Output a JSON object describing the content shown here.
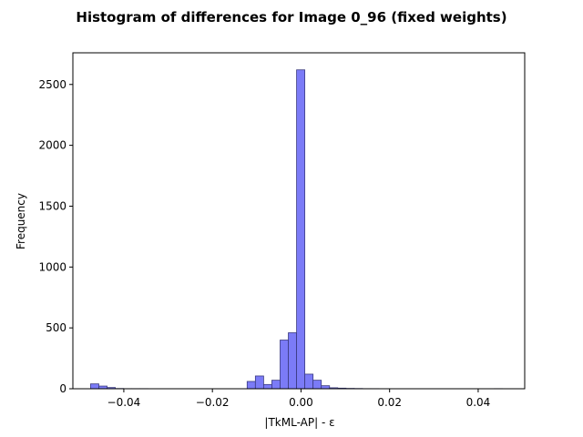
{
  "chart_data": {
    "type": "bar",
    "title": "Histogram of differences for Image 0_96 (fixed weights)",
    "xlabel": "|TkML-AP| - ε",
    "ylabel": "Frequency",
    "xlim": [
      -0.0515,
      0.0505
    ],
    "ylim": [
      0,
      2760
    ],
    "x_ticks": [
      -0.04,
      -0.02,
      0.0,
      0.02,
      0.04
    ],
    "x_tick_labels": [
      "−0.04",
      "−0.02",
      "0.00",
      "0.02",
      "0.04"
    ],
    "y_ticks": [
      0,
      500,
      1000,
      1500,
      2000,
      2500
    ],
    "y_tick_labels": [
      "0",
      "500",
      "1000",
      "1500",
      "2000",
      "2500"
    ],
    "bar_color": "#7b7bf7",
    "edge_color": "#3a3a80",
    "bin_edges_start": -0.0475,
    "bin_width": 0.00186,
    "values": [
      40,
      22,
      10,
      2,
      1,
      1,
      1,
      0,
      0,
      0,
      0,
      0,
      0,
      0,
      0,
      0,
      0,
      0,
      0,
      60,
      105,
      35,
      70,
      400,
      460,
      2620,
      120,
      70,
      25,
      8,
      5,
      3,
      2,
      1,
      1,
      0,
      0,
      0,
      0,
      0,
      0,
      0,
      0,
      0,
      0,
      0,
      0,
      0,
      0,
      1
    ]
  }
}
